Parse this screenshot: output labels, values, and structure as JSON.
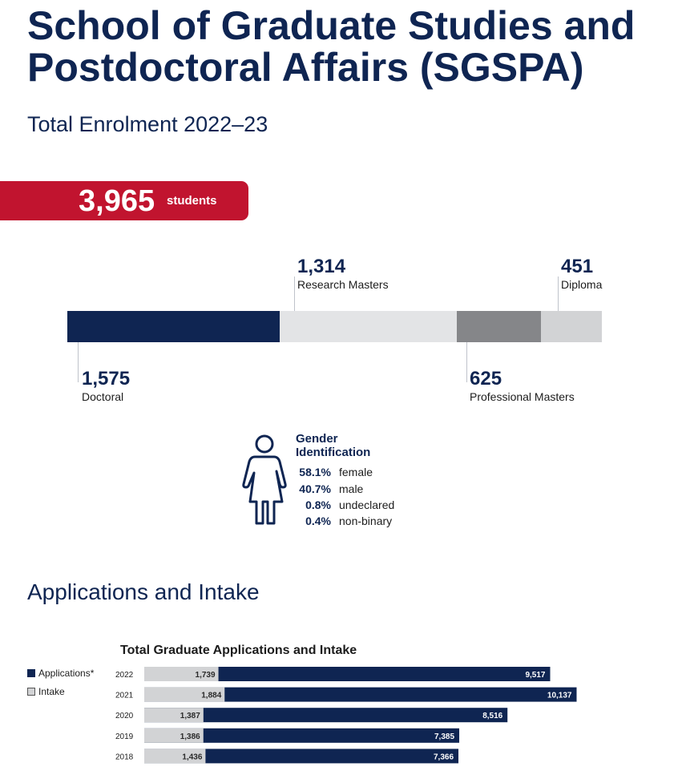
{
  "title": "School of Graduate Studies and Postdoctoral Affairs (SGSPA)",
  "enrolment": {
    "heading": "Total Enrolment 2022–23",
    "total": "3,965",
    "total_unit": "students",
    "segments": [
      {
        "value": 1575,
        "value_label": "1,575",
        "label": "Doctoral",
        "color": "#0f2552"
      },
      {
        "value": 1314,
        "value_label": "1,314",
        "label": "Research Masters",
        "color": "#e3e4e6"
      },
      {
        "value": 625,
        "value_label": "625",
        "label": "Professional Masters",
        "color": "#858689"
      },
      {
        "value": 451,
        "value_label": "451",
        "label": "Diploma",
        "color": "#d2d3d5"
      }
    ]
  },
  "gender": {
    "heading_line1": "Gender",
    "heading_line2": "Identification",
    "icon": "person-icon",
    "rows": [
      {
        "pct": "58.1%",
        "label": "female"
      },
      {
        "pct": "40.7%",
        "label": "male"
      },
      {
        "pct": "0.8%",
        "label": "undeclared"
      },
      {
        "pct": "0.4%",
        "label": "non-binary"
      }
    ]
  },
  "applications_heading": "Applications and Intake",
  "chart_data": {
    "type": "bar",
    "orientation": "horizontal",
    "stacked": true,
    "title": "Total Graduate Applications and Intake",
    "categories": [
      "2022",
      "2021",
      "2020",
      "2019",
      "2018"
    ],
    "series": [
      {
        "name": "Intake",
        "values": [
          1739,
          1884,
          1387,
          1386,
          1436
        ],
        "labels": [
          "1,739",
          "1,884",
          "1,387",
          "1,386",
          "1,436"
        ],
        "color": "#d2d3d5"
      },
      {
        "name": "Applications*",
        "values": [
          9517,
          10137,
          8516,
          7385,
          7366
        ],
        "labels": [
          "9,517",
          "10,137",
          "8,516",
          "7,385",
          "7,366"
        ],
        "color": "#0f2552"
      }
    ],
    "legend": [
      {
        "name": "Applications*",
        "color": "#0f2552"
      },
      {
        "name": "Intake",
        "color": "#d2d3d5"
      }
    ],
    "legend_position": "left",
    "xlim": [
      0,
      11800
    ],
    "grid": false
  }
}
